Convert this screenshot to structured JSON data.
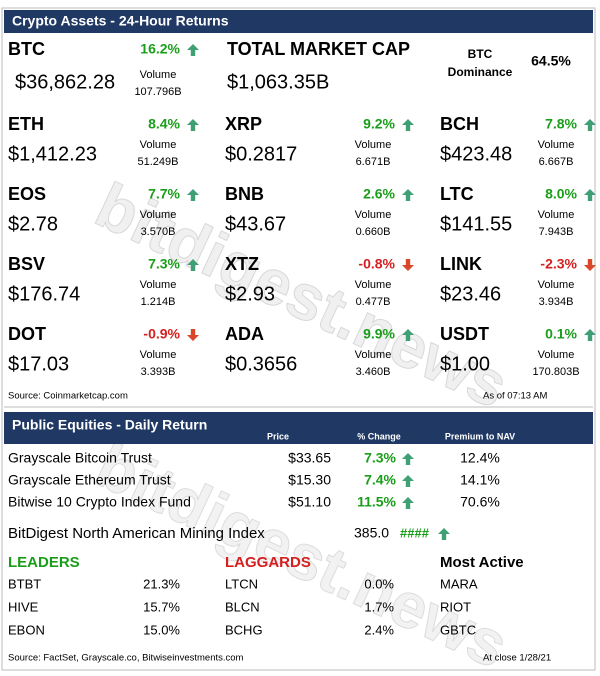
{
  "watermark": "bitdigest.news",
  "crypto": {
    "title": "Crypto Assets - 24-Hour Returns",
    "volume_label": "Volume",
    "assets": [
      {
        "symbol": "BTC",
        "change": "16.2%",
        "volume": "107.796B",
        "price": "$36,862.28"
      },
      {
        "symbol": "ETH",
        "change": "8.4%",
        "volume": "51.249B",
        "price": "$1,412.23"
      },
      {
        "symbol": "XRP",
        "change": "9.2%",
        "volume": "6.671B",
        "price": "$0.2817"
      },
      {
        "symbol": "BCH",
        "change": "7.8%",
        "volume": "6.667B",
        "price": "$423.48"
      },
      {
        "symbol": "EOS",
        "change": "7.7%",
        "volume": "3.570B",
        "price": "$2.78"
      },
      {
        "symbol": "BNB",
        "change": "2.6%",
        "volume": "0.660B",
        "price": "$43.67"
      },
      {
        "symbol": "LTC",
        "change": "8.0%",
        "volume": "7.943B",
        "price": "$141.55"
      },
      {
        "symbol": "BSV",
        "change": "7.3%",
        "volume": "1.214B",
        "price": "$176.74"
      },
      {
        "symbol": "XTZ",
        "change": "-0.8%",
        "volume": "0.477B",
        "price": "$2.93"
      },
      {
        "symbol": "LINK",
        "change": "-2.3%",
        "volume": "3.934B",
        "price": "$23.46"
      },
      {
        "symbol": "DOT",
        "change": "-0.9%",
        "volume": "3.393B",
        "price": "$17.03"
      },
      {
        "symbol": "ADA",
        "change": "9.9%",
        "volume": "3.460B",
        "price": "$0.3656"
      },
      {
        "symbol": "USDT",
        "change": "0.1%",
        "volume": "170.803B",
        "price": "$1.00"
      }
    ],
    "total_market_cap": {
      "label": "TOTAL MARKET CAP",
      "value": "$1,063.35B"
    },
    "btc_dominance": {
      "label": [
        "BTC",
        "Dominance"
      ],
      "value": "64.5%"
    },
    "source": "Source: Coinmarketcap.com",
    "as_of": "As of 07:13 AM"
  },
  "equities": {
    "title": "Public Equities - Daily Return",
    "columns": [
      "Price",
      "% Change",
      "Premium to NAV"
    ],
    "rows": [
      [
        "Grayscale Bitcoin Trust",
        "$33.65",
        "7.3%",
        "12.4%"
      ],
      [
        "Grayscale Ethereum Trust",
        "$15.30",
        "7.4%",
        "14.1%"
      ],
      [
        "Bitwise 10 Crypto Index Fund",
        "$51.10",
        "11.5%",
        "70.6%"
      ]
    ],
    "mining_index": {
      "name": "BitDigest North American Mining Index",
      "value": "385.0",
      "change": "####"
    },
    "leaders": {
      "title": "LEADERS",
      "rows": [
        [
          "BTBT",
          "21.3%"
        ],
        [
          "HIVE",
          "15.7%"
        ],
        [
          "EBON",
          "15.0%"
        ]
      ]
    },
    "laggards": {
      "title": "LAGGARDS",
      "rows": [
        [
          "LTCN",
          "0.0%"
        ],
        [
          "BLCN",
          "1.7%"
        ],
        [
          "BCHG",
          "2.4%"
        ]
      ]
    },
    "most_active": {
      "title": "Most Active",
      "rows": [
        "MARA",
        "RIOT",
        "GBTC"
      ]
    },
    "source": "Source: FactSet, Grayscale.co, Bitwiseinvestments.com",
    "as_of": "At close 1/28/21"
  }
}
